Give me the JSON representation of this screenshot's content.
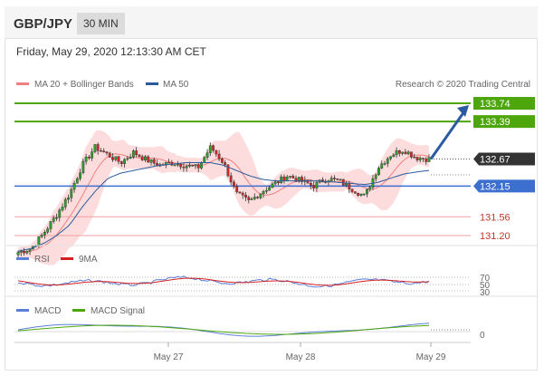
{
  "header": {
    "pair": "GBP/JPY",
    "timeframe": "30 MIN"
  },
  "timestamp": "Friday, May 29, 2020 12:13:30 AM CET",
  "credit": "Research © 2020 Trading Central",
  "colors": {
    "green": "#4da60c",
    "blue": "#3d6fd1",
    "red": "#e07070",
    "band": "#fcd6d6",
    "candle_up": "#2ca02c",
    "candle_down": "#d62728"
  },
  "chart_data": {
    "type": "candlestick",
    "legend": [
      {
        "name": "MA 20 + Bollinger Bands",
        "color": "#f08080"
      },
      {
        "name": "MA 50",
        "color": "#2c5c9c"
      }
    ],
    "levels": [
      {
        "value": 133.74,
        "label": "133.74",
        "kind": "resistance"
      },
      {
        "value": 133.39,
        "label": "133.39",
        "kind": "resistance"
      },
      {
        "value": 132.67,
        "label": "132.67",
        "kind": "last"
      },
      {
        "value": 132.15,
        "label": "132.15",
        "kind": "pivot"
      },
      {
        "value": 131.56,
        "label": "131.56",
        "kind": "support"
      },
      {
        "value": 131.2,
        "label": "131.20",
        "kind": "support"
      }
    ],
    "x_labels": [
      "May 27",
      "May 28",
      "May 29"
    ],
    "price_path": [
      130.88,
      130.95,
      131.25,
      131.6,
      132.0,
      132.55,
      132.9,
      132.75,
      132.6,
      132.8,
      132.65,
      132.55,
      132.6,
      132.55,
      132.5,
      132.9,
      132.6,
      132.0,
      131.85,
      132.05,
      132.2,
      132.35,
      132.25,
      132.15,
      132.3,
      132.25,
      132.1,
      131.95,
      132.5,
      132.75,
      132.85,
      132.7,
      132.67
    ],
    "ma50": [
      130.9,
      130.95,
      131.05,
      131.2,
      131.4,
      131.75,
      132.05,
      132.3,
      132.4,
      132.45,
      132.5,
      132.55,
      132.57,
      132.6,
      132.6,
      132.6,
      132.55,
      132.45,
      132.35,
      132.28,
      132.25,
      132.25,
      132.25,
      132.25,
      132.24,
      132.22,
      132.2,
      132.18,
      132.22,
      132.3,
      132.38,
      132.42,
      132.45
    ],
    "projection": {
      "from": 132.67,
      "to": 133.74
    },
    "sub_panels": [
      {
        "name": "RSI",
        "series": [
          {
            "name": "RSI",
            "color": "#5b7fd6"
          },
          {
            "name": "9MA",
            "color": "#d62020"
          }
        ],
        "ticks": [
          "70",
          "50",
          "30"
        ]
      },
      {
        "name": "MACD",
        "series": [
          {
            "name": "MACD",
            "color": "#5b7fd6"
          },
          {
            "name": "MACD Signal",
            "color": "#4da60c"
          }
        ],
        "ticks": [
          "0"
        ]
      }
    ]
  }
}
